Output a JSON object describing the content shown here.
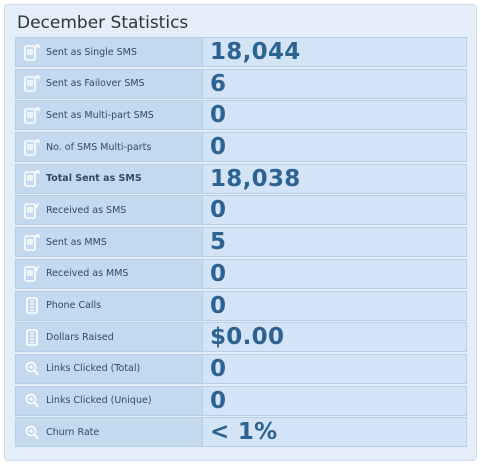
{
  "title": "December Statistics",
  "rows": [
    {
      "label": "Sent as Single SMS",
      "value": "18,044",
      "icon": "sms-out-icon",
      "bold": false
    },
    {
      "label": "Sent as Failover SMS",
      "value": "6",
      "icon": "sms-out-icon",
      "bold": false
    },
    {
      "label": "Sent as Multi-part SMS",
      "value": "0",
      "icon": "sms-out-icon",
      "bold": false
    },
    {
      "label": "No. of SMS Multi-parts",
      "value": "0",
      "icon": "sms-out-icon",
      "bold": false
    },
    {
      "label": "Total Sent as SMS",
      "value": "18,038",
      "icon": "sms-out-icon",
      "bold": true
    },
    {
      "label": "Received as SMS",
      "value": "0",
      "icon": "sms-in-icon",
      "bold": false
    },
    {
      "label": "Sent as MMS",
      "value": "5",
      "icon": "sms-out-icon",
      "bold": false
    },
    {
      "label": "Received as MMS",
      "value": "0",
      "icon": "sms-in-icon",
      "bold": false
    },
    {
      "label": "Phone Calls",
      "value": "0",
      "icon": "phone-icon",
      "bold": false
    },
    {
      "label": "Dollars Raised",
      "value": "$0.00",
      "icon": "phone-icon",
      "bold": false
    },
    {
      "label": "Links Clicked (Total)",
      "value": "0",
      "icon": "link-click-icon",
      "bold": false
    },
    {
      "label": "Links Clicked (Unique)",
      "value": "0",
      "icon": "link-click-icon",
      "bold": false
    },
    {
      "label": "Churn Rate",
      "value": "< 1%",
      "icon": "link-click-icon",
      "bold": false
    }
  ],
  "colors": {
    "panel_bg": "#e3eef8",
    "row_bg": "#c8ddf1",
    "value_text": "#2d6391",
    "icon": "#ffffff"
  }
}
